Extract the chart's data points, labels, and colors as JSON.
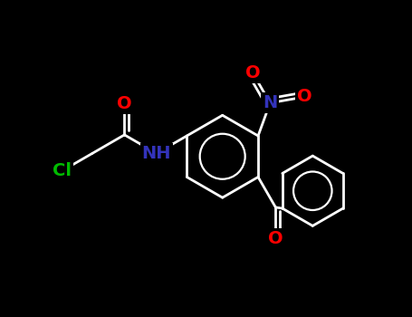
{
  "bg_color": "#000000",
  "bond_color": "#ffffff",
  "bond_lw": 2.0,
  "atom_colors": {
    "O": "#ff0000",
    "N": "#3333bb",
    "Cl": "#00bb00"
  },
  "font_size": 14,
  "fig_w": 4.55,
  "fig_h": 3.5,
  "dpi": 100,
  "xlim": [
    0,
    10
  ],
  "ylim": [
    0,
    7.7
  ]
}
